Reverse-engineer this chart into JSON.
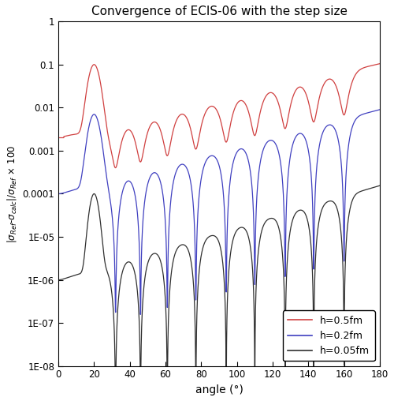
{
  "title": "Convergence of ECIS-06 with the step size",
  "xlabel": "angle (°)",
  "ylabel": "|σ_Ref-σ_calc|/σ_Ref × 100",
  "xlim": [
    0,
    180
  ],
  "ylim": [
    1e-08,
    1
  ],
  "xticks": [
    0,
    20,
    40,
    60,
    80,
    100,
    120,
    140,
    160,
    180
  ],
  "yticks": [
    1e-08,
    1e-07,
    1e-06,
    1e-05,
    0.0001,
    0.001,
    0.01,
    0.1,
    1
  ],
  "yticklabels": [
    "1E-08",
    "1E-07",
    "1E-06",
    "1E-05",
    "0.0001",
    "0.001",
    "0.01",
    "0.1",
    "1"
  ],
  "legend_labels": [
    "h=0.5fm",
    "h=0.2fm",
    "h=0.05fm"
  ],
  "line_colors": [
    "#d04040",
    "#4040c0",
    "#303030"
  ],
  "background": "#ffffff",
  "figsize": [
    5.0,
    5.08
  ],
  "dpi": 100
}
